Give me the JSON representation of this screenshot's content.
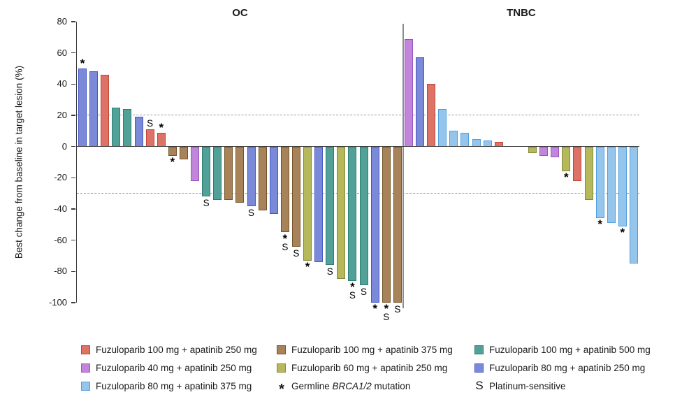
{
  "chart_data": {
    "type": "bar",
    "subtype": "waterfall",
    "ylabel": "Best change from baseline in target lesion (%)",
    "yticks": [
      80,
      60,
      40,
      20,
      0,
      -20,
      -40,
      -60,
      -80,
      -100
    ],
    "ylim": [
      -100,
      80
    ],
    "reference_lines": [
      20,
      -30
    ],
    "grid": "off",
    "legend_position": "bottom",
    "marker_meanings": {
      "*": "Germline BRCA1/2 mutation",
      "S": "Platinum-sensitive"
    },
    "groups": {
      "fuzu100_apa250": {
        "label": "Fuzuloparib 100 mg + apatinib 250 mg",
        "fill": "#DD7366",
        "border": "#C04437"
      },
      "fuzu40_apa250": {
        "label": "Fuzuloparib 40 mg + apatinib 250 mg",
        "fill": "#C285DC",
        "border": "#9C51BE"
      },
      "fuzu80_apa375": {
        "label": "Fuzuloparib 80 mg + apatinib 375 mg",
        "fill": "#96C5EB",
        "border": "#4E9EE0"
      },
      "fuzu100_apa375": {
        "label": "Fuzuloparib 100 mg + apatinib 375 mg",
        "fill": "#A8835A",
        "border": "#74542A"
      },
      "fuzu60_apa250": {
        "label": "Fuzuloparib 60 mg + apatinib 250 mg",
        "fill": "#B6B95B",
        "border": "#84873A"
      },
      "fuzu100_apa500": {
        "label": "Fuzuloparib 100 mg + apatinib 500 mg",
        "fill": "#52A198",
        "border": "#2B7D72"
      },
      "fuzu80_apa250": {
        "label": "Fuzuloparib 80 mg + apatinib 250 mg",
        "fill": "#7B8AD8",
        "border": "#4456C8"
      }
    },
    "panels": [
      {
        "title": "OC",
        "bars": [
          {
            "value": 50,
            "group": "fuzu80_apa250",
            "mark": "*"
          },
          {
            "value": 48,
            "group": "fuzu80_apa250"
          },
          {
            "value": 46,
            "group": "fuzu100_apa250"
          },
          {
            "value": 25,
            "group": "fuzu100_apa500"
          },
          {
            "value": 24,
            "group": "fuzu100_apa500"
          },
          {
            "value": 19,
            "group": "fuzu80_apa250"
          },
          {
            "value": 11,
            "group": "fuzu100_apa250",
            "mark": "S"
          },
          {
            "value": 9,
            "group": "fuzu100_apa250",
            "mark": "*"
          },
          {
            "value": -6,
            "group": "fuzu100_apa375",
            "mark": "*"
          },
          {
            "value": -8,
            "group": "fuzu100_apa375"
          },
          {
            "value": -22,
            "group": "fuzu40_apa250"
          },
          {
            "value": -32,
            "group": "fuzu100_apa500",
            "mark": "S"
          },
          {
            "value": -34,
            "group": "fuzu100_apa500"
          },
          {
            "value": -34,
            "group": "fuzu100_apa375"
          },
          {
            "value": -36,
            "group": "fuzu100_apa375"
          },
          {
            "value": -38,
            "group": "fuzu80_apa250",
            "mark": "S"
          },
          {
            "value": -41,
            "group": "fuzu100_apa375"
          },
          {
            "value": -43,
            "group": "fuzu80_apa250"
          },
          {
            "value": -55,
            "group": "fuzu100_apa375",
            "mark": "*S"
          },
          {
            "value": -64,
            "group": "fuzu100_apa375",
            "mark": "S"
          },
          {
            "value": -73,
            "group": "fuzu60_apa250",
            "mark": "*"
          },
          {
            "value": -74,
            "group": "fuzu80_apa250"
          },
          {
            "value": -76,
            "group": "fuzu100_apa500",
            "mark": "S"
          },
          {
            "value": -85,
            "group": "fuzu60_apa250"
          },
          {
            "value": -86,
            "group": "fuzu100_apa500",
            "mark": "*S"
          },
          {
            "value": -89,
            "group": "fuzu100_apa500",
            "mark": "S"
          },
          {
            "value": -100,
            "group": "fuzu80_apa250",
            "mark": "*"
          },
          {
            "value": -100,
            "group": "fuzu100_apa375",
            "mark": "*S"
          },
          {
            "value": -100,
            "group": "fuzu100_apa375",
            "mark": "S"
          }
        ]
      },
      {
        "title": "TNBC",
        "bars": [
          {
            "value": 69,
            "group": "fuzu40_apa250"
          },
          {
            "value": 57,
            "group": "fuzu80_apa250"
          },
          {
            "value": 40,
            "group": "fuzu100_apa250"
          },
          {
            "value": 24,
            "group": "fuzu80_apa375"
          },
          {
            "value": 10,
            "group": "fuzu80_apa375"
          },
          {
            "value": 9,
            "group": "fuzu80_apa375"
          },
          {
            "value": 5,
            "group": "fuzu80_apa375"
          },
          {
            "value": 4,
            "group": "fuzu80_apa375"
          },
          {
            "value": 3,
            "group": "fuzu100_apa250"
          },
          {
            "value": 0,
            "group": null
          },
          {
            "value": 0,
            "group": null
          },
          {
            "value": -4,
            "group": "fuzu60_apa250"
          },
          {
            "value": -6,
            "group": "fuzu40_apa250"
          },
          {
            "value": -7,
            "group": "fuzu40_apa250"
          },
          {
            "value": -16,
            "group": "fuzu60_apa250",
            "mark": "*"
          },
          {
            "value": -22,
            "group": "fuzu100_apa250"
          },
          {
            "value": -34,
            "group": "fuzu60_apa250"
          },
          {
            "value": -46,
            "group": "fuzu80_apa375",
            "mark": "*"
          },
          {
            "value": -49,
            "group": "fuzu80_apa375"
          },
          {
            "value": -51,
            "group": "fuzu80_apa375",
            "mark": "*"
          },
          {
            "value": -75,
            "group": "fuzu80_apa375"
          }
        ]
      }
    ],
    "legend": {
      "columns": [
        [
          {
            "swatch": "fuzu100_apa250",
            "parts": [
              {
                "text": "Fuzuloparib 100 mg + apatinib 250 mg"
              }
            ]
          },
          {
            "swatch": "fuzu40_apa250",
            "parts": [
              {
                "text": "Fuzuloparib 40 mg + apatinib 250 mg"
              }
            ]
          },
          {
            "swatch": "fuzu80_apa375",
            "parts": [
              {
                "text": "Fuzuloparib 80 mg + apatinib 375 mg"
              }
            ]
          }
        ],
        [
          {
            "swatch": "fuzu100_apa375",
            "parts": [
              {
                "text": "Fuzuloparib 100 mg + apatinib 375 mg"
              }
            ]
          },
          {
            "swatch": "fuzu60_apa250",
            "parts": [
              {
                "text": "Fuzuloparib 60 mg + apatinib 250 mg"
              }
            ]
          },
          {
            "symbol": "*",
            "parts": [
              {
                "text": "Germline "
              },
              {
                "text": "BRCA1/2",
                "italic": true
              },
              {
                "text": " mutation"
              }
            ]
          }
        ],
        [
          {
            "swatch": "fuzu100_apa500",
            "parts": [
              {
                "text": "Fuzuloparib 100 mg + apatinib 500 mg"
              }
            ]
          },
          {
            "swatch": "fuzu80_apa250",
            "parts": [
              {
                "text": "Fuzuloparib 80 mg + apatinib 250 mg"
              }
            ]
          },
          {
            "symbol": "S",
            "parts": [
              {
                "text": "Platinum-sensitive"
              }
            ]
          }
        ]
      ]
    }
  }
}
